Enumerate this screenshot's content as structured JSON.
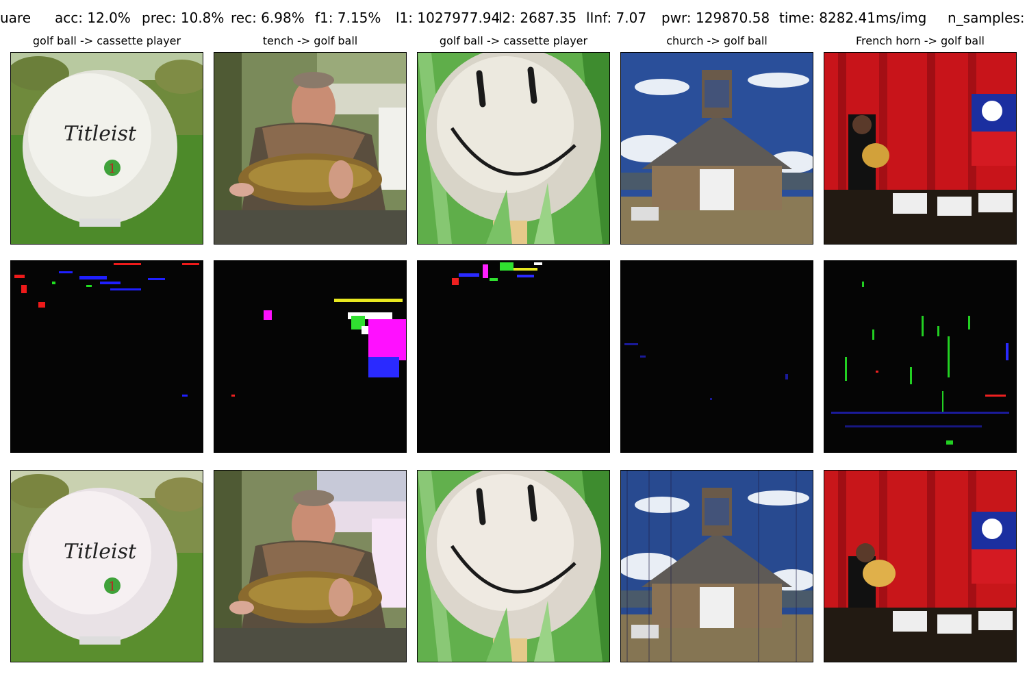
{
  "header": {
    "metrics": [
      {
        "key": "name",
        "text": "uare"
      },
      {
        "key": "acc",
        "text": "acc: 12.0%"
      },
      {
        "key": "prec",
        "text": "prec: 10.8%"
      },
      {
        "key": "rec",
        "text": "rec: 6.98%"
      },
      {
        "key": "f1",
        "text": "f1: 7.15%"
      },
      {
        "key": "l1",
        "text": "l1: 1027977.94"
      },
      {
        "key": "l2",
        "text": "l2: 2687.35"
      },
      {
        "key": "linf",
        "text": "lInf: 7.07"
      },
      {
        "key": "pwr",
        "text": "pwr: 129870.58"
      },
      {
        "key": "time",
        "text": "time: 8282.41ms/img"
      },
      {
        "key": "n_samples",
        "text": "n_samples:"
      }
    ]
  },
  "columns": [
    {
      "title": "golf ball -> cassette player",
      "image": "golf-ball-titleist-image"
    },
    {
      "title": "tench -> golf ball",
      "image": "man-holding-fish-image"
    },
    {
      "title": "golf ball -> cassette player",
      "image": "smiley-golf-ball-image"
    },
    {
      "title": "church -> golf ball",
      "image": "adobe-church-image"
    },
    {
      "title": "French horn -> golf ball",
      "image": "french-horn-player-image"
    }
  ],
  "rows": [
    "original",
    "perturbation",
    "adversarial"
  ],
  "image_text": {
    "ball_brand": "Titleist",
    "ball_number": "1"
  },
  "colors": {
    "perturbation_background": "#050505",
    "grass": "#4d8a2a",
    "sky": "#2a4f9a",
    "curtain": "#c8141a"
  }
}
